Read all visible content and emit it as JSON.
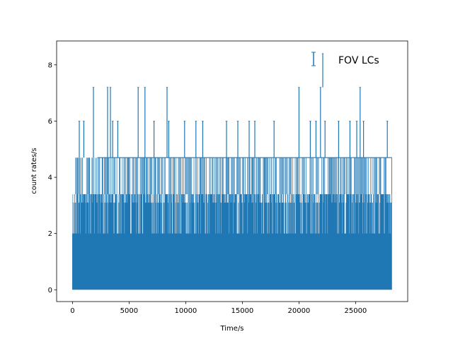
{
  "chart_data": {
    "type": "errorbar",
    "title": "",
    "xlabel": "Time/s",
    "ylabel": "count rates/s",
    "xlim": [
      -1400,
      29600
    ],
    "ylim": [
      -0.42,
      8.85
    ],
    "x_range": [
      0,
      28200
    ],
    "xticks": [
      0,
      5000,
      10000,
      15000,
      20000,
      25000
    ],
    "yticks": [
      0,
      2,
      4,
      6,
      8
    ],
    "grid": false,
    "legend": {
      "position": "top-right",
      "entries": [
        "FOV LCs"
      ]
    },
    "series": [
      {
        "name": "FOV LCs",
        "color": "#1f77b4",
        "rate_levels": [
          0,
          0.34,
          1.0,
          1.33,
          2.0,
          3.4,
          4.7,
          6.0,
          7.2,
          8.4
        ],
        "spikes": [
          {
            "x": 600,
            "y": 6.0
          },
          {
            "x": 1000,
            "y": 6.0
          },
          {
            "x": 1850,
            "y": 7.2
          },
          {
            "x": 3100,
            "y": 7.2
          },
          {
            "x": 3350,
            "y": 7.2
          },
          {
            "x": 3550,
            "y": 6.0
          },
          {
            "x": 4000,
            "y": 6.0
          },
          {
            "x": 5800,
            "y": 7.2
          },
          {
            "x": 6400,
            "y": 7.2
          },
          {
            "x": 7200,
            "y": 6.0
          },
          {
            "x": 8350,
            "y": 7.2
          },
          {
            "x": 8500,
            "y": 6.0
          },
          {
            "x": 9900,
            "y": 6.0
          },
          {
            "x": 10900,
            "y": 6.0
          },
          {
            "x": 11500,
            "y": 6.0
          },
          {
            "x": 13600,
            "y": 6.0
          },
          {
            "x": 14600,
            "y": 6.0
          },
          {
            "x": 15600,
            "y": 6.0
          },
          {
            "x": 16100,
            "y": 6.0
          },
          {
            "x": 17800,
            "y": 6.0
          },
          {
            "x": 20000,
            "y": 7.2
          },
          {
            "x": 21000,
            "y": 6.0
          },
          {
            "x": 21500,
            "y": 6.0
          },
          {
            "x": 21900,
            "y": 7.2
          },
          {
            "x": 22100,
            "y": 8.4
          },
          {
            "x": 22300,
            "y": 6.0
          },
          {
            "x": 23500,
            "y": 6.0
          },
          {
            "x": 24500,
            "y": 6.0
          },
          {
            "x": 25100,
            "y": 6.0
          },
          {
            "x": 25400,
            "y": 7.2
          },
          {
            "x": 25700,
            "y": 6.0
          },
          {
            "x": 27800,
            "y": 6.0
          }
        ]
      }
    ]
  }
}
